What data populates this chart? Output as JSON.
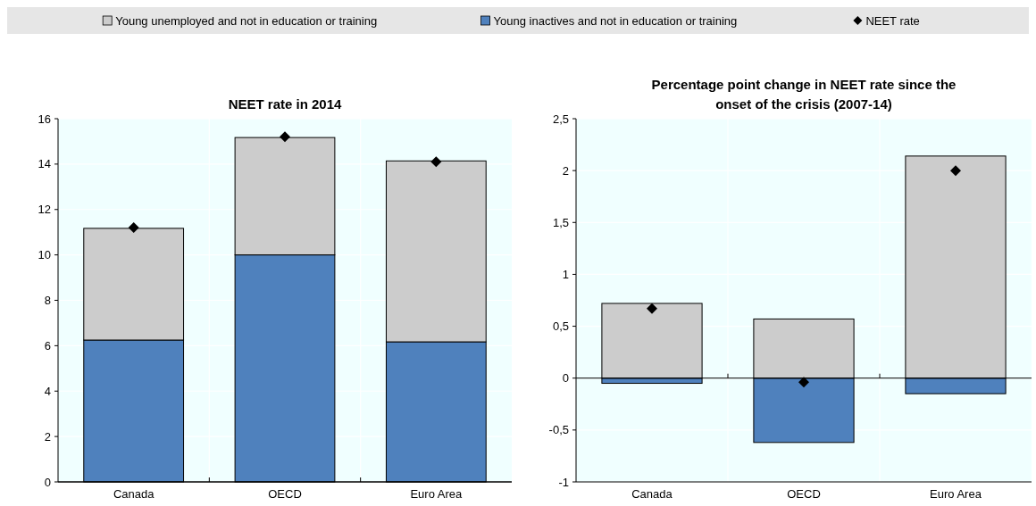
{
  "chart_data": [
    {
      "type": "bar",
      "title": "NEET rate in 2014",
      "categories": [
        "Canada",
        "OECD",
        "Euro Area"
      ],
      "stacked": true,
      "legend": "top",
      "grid": true,
      "series": [
        {
          "name": "Young inactives and not in education or training",
          "color": "#4f81bd",
          "values": [
            6.25,
            10.0,
            6.17
          ]
        },
        {
          "name": "Young unemployed and not in education or training",
          "color": "#cccccc",
          "values": [
            4.92,
            5.17,
            7.97
          ]
        },
        {
          "name": "NEET rate",
          "type": "scatter",
          "marker": "diamond",
          "color": "#000000",
          "x": [
            "Canada",
            "OECD",
            "Euro Area"
          ],
          "values": [
            11.2,
            15.2,
            14.1
          ]
        }
      ],
      "ylim": [
        0,
        16
      ],
      "yticks": [
        0,
        2,
        4,
        6,
        8,
        10,
        12,
        14,
        16
      ]
    },
    {
      "type": "bar",
      "title": "Percentage point change in NEET rate since the onset of the crisis (2007-14)",
      "categories": [
        "Canada",
        "OECD",
        "Euro Area"
      ],
      "stacked": true,
      "grid": true,
      "series": [
        {
          "color": "#4f81bd",
          "values": [
            -0.05,
            -0.62,
            -0.15
          ]
        },
        {
          "color": "#cccccc",
          "values": [
            0.72,
            0.57,
            2.14
          ]
        },
        {
          "type": "scatter",
          "marker": "diamond",
          "color": "#000000",
          "x": [
            "Canada",
            "OECD",
            "Euro Area"
          ],
          "values": [
            0.67,
            -0.04,
            2.0
          ]
        }
      ],
      "ylim": [
        -1,
        2.5
      ],
      "yticks": [
        -1,
        {
          "value": -0.5,
          "label": "-0,5"
        },
        0,
        {
          "value": 0.5,
          "label": "0,5"
        },
        1,
        {
          "value": 1.5,
          "label": "1,5"
        },
        2,
        {
          "value": 2.5,
          "label": "2,5"
        }
      ]
    }
  ]
}
